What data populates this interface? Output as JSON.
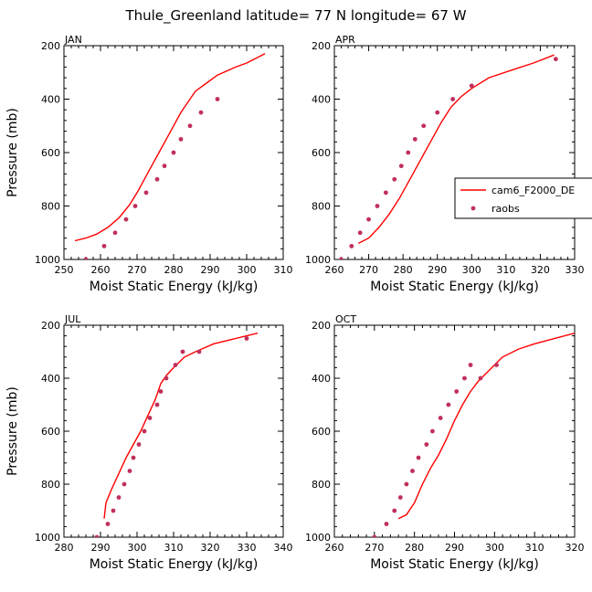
{
  "figure": {
    "title": "Thule_Greenland   latitude= 77 N longitude= 67 W"
  },
  "colors": {
    "model": "#ff0000",
    "obs": "#c0305a",
    "axis": "#000000"
  },
  "legend": {
    "model_label": "cam6_F2000_DE",
    "obs_label": "raobs"
  },
  "chart_data": [
    {
      "type": "line",
      "panel": "JAN",
      "xlabel": "Moist Static Energy (kJ/kg)",
      "ylabel": "Pressure (mb)",
      "xlim": [
        250,
        310
      ],
      "xticks": [
        250,
        260,
        270,
        280,
        290,
        300,
        310
      ],
      "ylim": [
        1000,
        200
      ],
      "yticks": [
        200,
        400,
        600,
        800,
        1000
      ],
      "series": [
        {
          "name": "cam6_F2000_DE",
          "style": "line",
          "points": [
            [
              253,
              930
            ],
            [
              256,
              920
            ],
            [
              259,
              905
            ],
            [
              262,
              880
            ],
            [
              265,
              845
            ],
            [
              268,
              795
            ],
            [
              270,
              750
            ],
            [
              272,
              700
            ],
            [
              274,
              650
            ],
            [
              276,
              600
            ],
            [
              278,
              550
            ],
            [
              280,
              500
            ],
            [
              282,
              450
            ],
            [
              284,
              410
            ],
            [
              286,
              370
            ],
            [
              289,
              340
            ],
            [
              292,
              310
            ],
            [
              297,
              280
            ],
            [
              300,
              265
            ],
            [
              305,
              230
            ]
          ]
        },
        {
          "name": "raobs",
          "style": "points",
          "points": [
            [
              256,
              1000
            ],
            [
              261,
              950
            ],
            [
              264,
              900
            ],
            [
              267,
              850
            ],
            [
              269.5,
              800
            ],
            [
              272.5,
              750
            ],
            [
              275.5,
              700
            ],
            [
              277.5,
              650
            ],
            [
              280,
              600
            ],
            [
              282,
              550
            ],
            [
              284.5,
              500
            ],
            [
              287.5,
              450
            ],
            [
              292,
              400
            ]
          ]
        }
      ]
    },
    {
      "type": "line",
      "panel": "APR",
      "xlabel": "Moist Static Energy (kJ/kg)",
      "ylabel": "",
      "xlim": [
        260,
        330
      ],
      "xticks": [
        260,
        270,
        280,
        290,
        300,
        310,
        320,
        330
      ],
      "ylim": [
        1000,
        200
      ],
      "yticks": [
        200,
        400,
        600,
        800,
        1000
      ],
      "series": [
        {
          "name": "cam6_F2000_DE",
          "style": "line",
          "points": [
            [
              267,
              940
            ],
            [
              270,
              920
            ],
            [
              273,
              880
            ],
            [
              276,
              830
            ],
            [
              279,
              770
            ],
            [
              282,
              700
            ],
            [
              285,
              630
            ],
            [
              288,
              560
            ],
            [
              291,
              490
            ],
            [
              294,
              430
            ],
            [
              297,
              390
            ],
            [
              300,
              360
            ],
            [
              305,
              320
            ],
            [
              312,
              290
            ],
            [
              318,
              265
            ],
            [
              324,
              235
            ]
          ]
        },
        {
          "name": "raobs",
          "style": "points",
          "points": [
            [
              262,
              1000
            ],
            [
              265,
              950
            ],
            [
              267.5,
              900
            ],
            [
              270,
              850
            ],
            [
              272.5,
              800
            ],
            [
              275,
              750
            ],
            [
              277.5,
              700
            ],
            [
              279.5,
              650
            ],
            [
              281.5,
              600
            ],
            [
              283.5,
              550
            ],
            [
              286,
              500
            ],
            [
              290,
              450
            ],
            [
              294.5,
              400
            ],
            [
              300,
              350
            ],
            [
              324.5,
              250
            ]
          ]
        }
      ]
    },
    {
      "type": "line",
      "panel": "JUL",
      "xlabel": "Moist Static Energy (kJ/kg)",
      "ylabel": "Pressure (mb)",
      "xlim": [
        280,
        340
      ],
      "xticks": [
        280,
        290,
        300,
        310,
        320,
        330,
        340
      ],
      "ylim": [
        1000,
        200
      ],
      "yticks": [
        200,
        400,
        600,
        800,
        1000
      ],
      "series": [
        {
          "name": "cam6_F2000_DE",
          "style": "line",
          "points": [
            [
              291,
              930
            ],
            [
              291.5,
              870
            ],
            [
              293,
              820
            ],
            [
              295,
              760
            ],
            [
              297,
              700
            ],
            [
              299,
              650
            ],
            [
              301,
              600
            ],
            [
              303,
              540
            ],
            [
              305,
              480
            ],
            [
              306.5,
              420
            ],
            [
              308,
              390
            ],
            [
              310,
              360
            ],
            [
              313,
              320
            ],
            [
              316,
              300
            ],
            [
              321,
              270
            ],
            [
              333,
              230
            ]
          ]
        },
        {
          "name": "raobs",
          "style": "points",
          "points": [
            [
              289,
              1000
            ],
            [
              292,
              950
            ],
            [
              293.5,
              900
            ],
            [
              295,
              850
            ],
            [
              296.5,
              800
            ],
            [
              298,
              750
            ],
            [
              299,
              700
            ],
            [
              300.5,
              650
            ],
            [
              302,
              600
            ],
            [
              303.5,
              550
            ],
            [
              305.5,
              500
            ],
            [
              306.5,
              450
            ],
            [
              308,
              400
            ],
            [
              310.5,
              350
            ],
            [
              312.5,
              300
            ],
            [
              317,
              300
            ],
            [
              330,
              250
            ]
          ]
        }
      ]
    },
    {
      "type": "line",
      "panel": "OCT",
      "xlabel": "Moist Static Energy (kJ/kg)",
      "ylabel": "",
      "xlim": [
        260,
        320
      ],
      "xticks": [
        260,
        270,
        280,
        290,
        300,
        310,
        320
      ],
      "ylim": [
        1000,
        200
      ],
      "yticks": [
        200,
        400,
        600,
        800,
        1000
      ],
      "series": [
        {
          "name": "cam6_F2000_DE",
          "style": "line",
          "points": [
            [
              276,
              930
            ],
            [
              278,
              915
            ],
            [
              280,
              870
            ],
            [
              282,
              800
            ],
            [
              284,
              740
            ],
            [
              286,
              690
            ],
            [
              288,
              630
            ],
            [
              290,
              560
            ],
            [
              292,
              500
            ],
            [
              294,
              450
            ],
            [
              296,
              410
            ],
            [
              298,
              380
            ],
            [
              300,
              350
            ],
            [
              302,
              320
            ],
            [
              306,
              290
            ],
            [
              310,
              270
            ],
            [
              320,
              230
            ]
          ]
        },
        {
          "name": "raobs",
          "style": "points",
          "points": [
            [
              270,
              1000
            ],
            [
              273,
              950
            ],
            [
              275,
              900
            ],
            [
              276.5,
              850
            ],
            [
              278,
              800
            ],
            [
              279.5,
              750
            ],
            [
              281,
              700
            ],
            [
              283,
              650
            ],
            [
              284.5,
              600
            ],
            [
              286.5,
              550
            ],
            [
              288.5,
              500
            ],
            [
              290.5,
              450
            ],
            [
              292.5,
              400
            ],
            [
              294,
              350
            ],
            [
              296.5,
              400
            ],
            [
              300.5,
              350
            ]
          ]
        }
      ]
    }
  ]
}
